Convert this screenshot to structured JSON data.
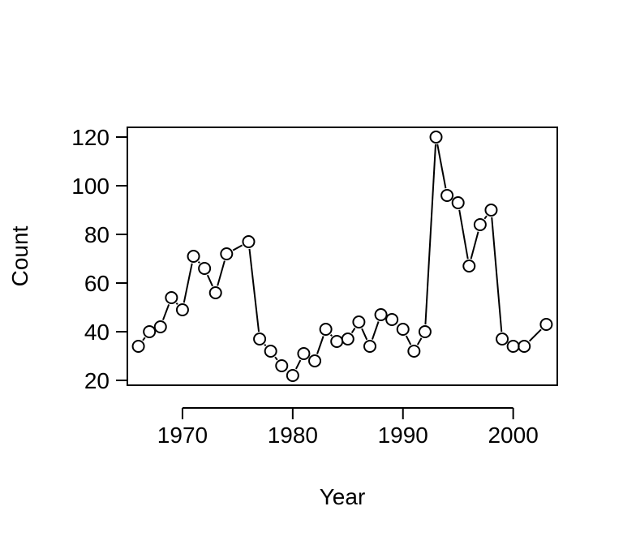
{
  "chart_data": {
    "type": "line",
    "title": "",
    "xlabel": "Year",
    "ylabel": "Count",
    "xlim": [
      1965,
      2004
    ],
    "ylim": [
      18,
      124
    ],
    "x_ticks": [
      1970,
      1980,
      1990,
      2000
    ],
    "y_ticks": [
      20,
      40,
      60,
      80,
      100,
      120
    ],
    "grid": false,
    "marker": "open-circle",
    "series": [
      {
        "x": [
          1966,
          1967,
          1968,
          1969,
          1970,
          1971,
          1972,
          1973,
          1974,
          1976,
          1977,
          1978,
          1979,
          1980,
          1981,
          1982,
          1983,
          1984,
          1985,
          1986,
          1987,
          1988,
          1989,
          1990,
          1991,
          1992,
          1993,
          1994,
          1995,
          1996,
          1997,
          1998,
          1999,
          2000,
          2001,
          2003
        ],
        "y": [
          34,
          40,
          42,
          54,
          49,
          71,
          66,
          56,
          72,
          77,
          37,
          32,
          26,
          22,
          31,
          28,
          41,
          36,
          37,
          44,
          34,
          47,
          45,
          41,
          32,
          40,
          120,
          96,
          93,
          67,
          84,
          90,
          37,
          34,
          34,
          43
        ]
      }
    ]
  }
}
